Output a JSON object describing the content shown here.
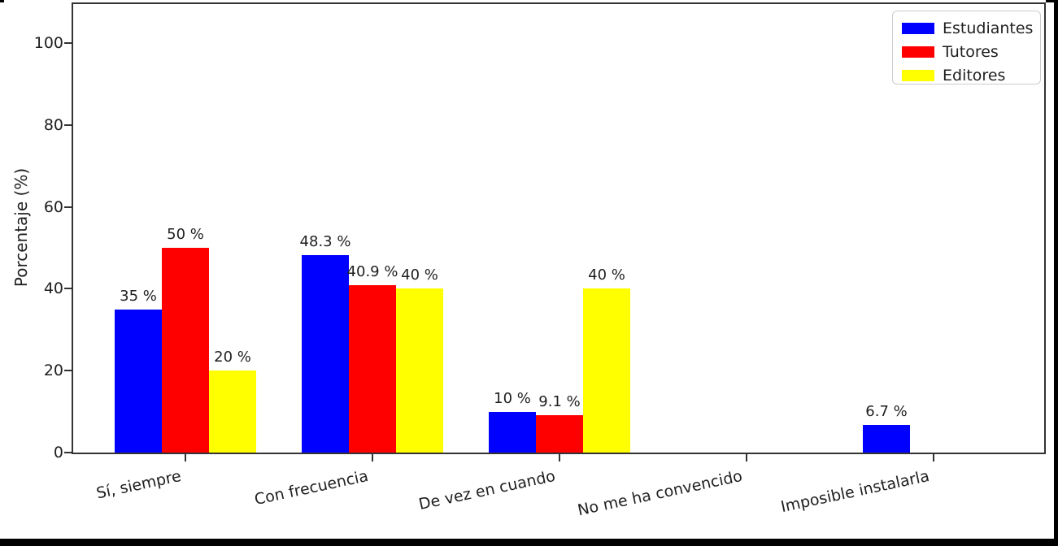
{
  "chart_data": {
    "type": "bar",
    "title": "",
    "xlabel": "",
    "ylabel": "Porcentaje (%)",
    "ylim": [
      0,
      110
    ],
    "yticks": [
      0,
      20,
      40,
      60,
      80,
      100
    ],
    "grid": false,
    "legend_position": "upper right",
    "categories": [
      "Sí, siempre",
      "Con frecuencia",
      "De vez en cuando",
      "No me ha convencido",
      "Imposible instalarla"
    ],
    "series": [
      {
        "name": "Estudiantes",
        "color": "#0000FF",
        "values": [
          35,
          48.3,
          10,
          0,
          6.7
        ],
        "labels": [
          "35 %",
          "48.3 %",
          "10 %",
          "",
          "6.7 %"
        ]
      },
      {
        "name": "Tutores",
        "color": "#FF0000",
        "values": [
          50,
          40.9,
          9.1,
          0,
          0
        ],
        "labels": [
          "50 %",
          "40.9 %",
          "9.1 %",
          "",
          ""
        ]
      },
      {
        "name": "Editores",
        "color": "#FFFF00",
        "values": [
          20,
          40,
          40,
          0,
          0
        ],
        "labels": [
          "20 %",
          "40 %",
          "40 %",
          "",
          ""
        ]
      }
    ]
  },
  "colors": {
    "axis": "#333333",
    "text": "#1f1f1f",
    "legend_border": "#cccccc",
    "frame": "#000000",
    "background": "#ffffff"
  }
}
